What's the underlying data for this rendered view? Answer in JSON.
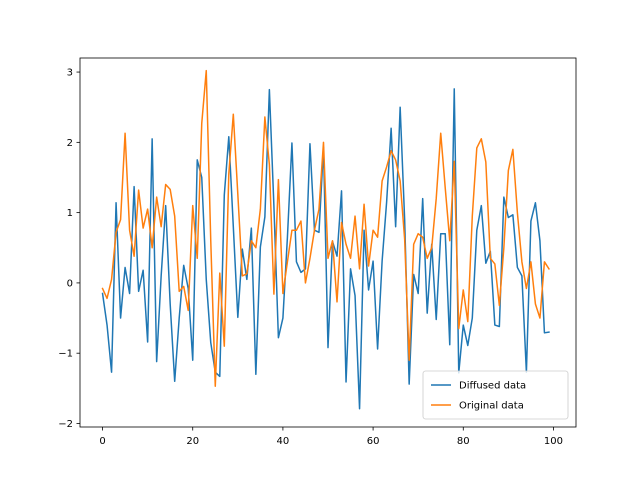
{
  "chart_data": {
    "type": "line",
    "title": "",
    "xlabel": "",
    "ylabel": "",
    "xlim": [
      -5,
      105
    ],
    "ylim": [
      -2.05,
      3.2
    ],
    "xticks": [
      0,
      20,
      40,
      60,
      80,
      100
    ],
    "yticks": [
      -2,
      -1,
      0,
      1,
      2,
      3
    ],
    "grid": false,
    "legend": {
      "position": "lower-right"
    },
    "x": [
      0,
      1,
      2,
      3,
      4,
      5,
      6,
      7,
      8,
      9,
      10,
      11,
      12,
      13,
      14,
      15,
      16,
      17,
      18,
      19,
      20,
      21,
      22,
      23,
      24,
      25,
      26,
      27,
      28,
      29,
      30,
      31,
      32,
      33,
      34,
      35,
      36,
      37,
      38,
      39,
      40,
      41,
      42,
      43,
      44,
      45,
      46,
      47,
      48,
      49,
      50,
      51,
      52,
      53,
      54,
      55,
      56,
      57,
      58,
      59,
      60,
      61,
      62,
      63,
      64,
      65,
      66,
      67,
      68,
      69,
      70,
      71,
      72,
      73,
      74,
      75,
      76,
      77,
      78,
      79,
      80,
      81,
      82,
      83,
      84,
      85,
      86,
      87,
      88,
      89,
      90,
      91,
      92,
      93,
      94,
      95,
      96,
      97,
      98,
      99
    ],
    "series": [
      {
        "name": "Diffused data",
        "color": "#1f77b4",
        "values": [
          -0.15,
          -0.6,
          -1.27,
          1.14,
          -0.5,
          0.22,
          -0.15,
          1.37,
          -0.12,
          0.18,
          -0.84,
          2.05,
          -1.12,
          0.1,
          1.1,
          -0.3,
          -1.4,
          -0.5,
          0.25,
          -0.08,
          -1.1,
          1.75,
          1.5,
          0.05,
          -0.85,
          -1.27,
          -1.33,
          1.25,
          2.08,
          0.8,
          -0.49,
          0.48,
          0.05,
          0.78,
          -1.3,
          0.51,
          0.94,
          2.75,
          1.1,
          -0.78,
          -0.5,
          0.65,
          1.99,
          0.3,
          0.15,
          0.2,
          1.98,
          0.75,
          0.72,
          1.93,
          -0.92,
          0.59,
          0.38,
          1.31,
          -1.41,
          0.2,
          -0.18,
          -1.79,
          0.75,
          -0.1,
          0.31,
          -0.94,
          0.31,
          1.15,
          2.2,
          0.8,
          2.5,
          0.9,
          -1.44,
          0.12,
          -0.15,
          1.2,
          -0.43,
          0.55,
          -0.52,
          0.7,
          0.7,
          -0.88,
          2.76,
          -1.28,
          -0.6,
          -0.89,
          -0.5,
          0.75,
          1.1,
          0.28,
          0.45,
          -0.6,
          -0.62,
          1.22,
          0.93,
          0.97,
          0.22,
          0.1,
          -1.27,
          0.88,
          1.14,
          0.6,
          -0.71,
          -0.7
        ]
      },
      {
        "name": "Original data",
        "color": "#ff7f0e",
        "values": [
          -0.08,
          -0.22,
          0.05,
          0.72,
          0.9,
          2.13,
          0.75,
          0.38,
          1.32,
          0.78,
          1.05,
          0.5,
          1.22,
          0.8,
          1.4,
          1.33,
          0.95,
          -0.12,
          -0.05,
          -0.39,
          1.1,
          0.35,
          2.27,
          3.02,
          0.6,
          -1.47,
          0.14,
          -0.9,
          1.55,
          2.4,
          1.26,
          0.1,
          0.13,
          0.6,
          0.5,
          1.05,
          2.36,
          1.68,
          -0.16,
          1.47,
          -0.15,
          0.3,
          0.75,
          0.75,
          0.88,
          0.0,
          0.35,
          0.75,
          1.05,
          2.0,
          0.35,
          0.6,
          -0.27,
          0.86,
          0.55,
          0.35,
          0.95,
          0.2,
          1.12,
          0.24,
          0.75,
          0.65,
          1.45,
          1.65,
          1.88,
          1.75,
          1.45,
          0.62,
          -1.1,
          0.55,
          0.7,
          0.65,
          0.35,
          0.5,
          1.2,
          2.13,
          1.35,
          0.6,
          1.73,
          -0.65,
          -0.1,
          -0.55,
          0.95,
          1.92,
          2.05,
          1.72,
          0.35,
          0.27,
          -0.32,
          0.5,
          1.6,
          1.9,
          1.0,
          0.3,
          -0.08,
          0.3,
          -0.3,
          -0.5,
          0.3,
          0.2
        ]
      }
    ]
  }
}
